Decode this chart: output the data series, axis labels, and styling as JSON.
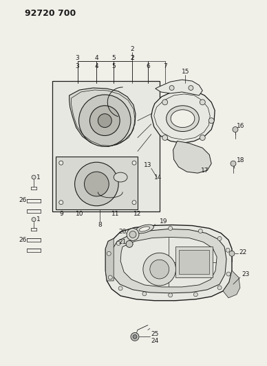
{
  "bg_color": "#f0efe8",
  "line_color": "#1a1a1a",
  "title": "92720 700",
  "title_fontsize": 10,
  "fig_w": 3.88,
  "fig_h": 5.33,
  "dpi": 100
}
